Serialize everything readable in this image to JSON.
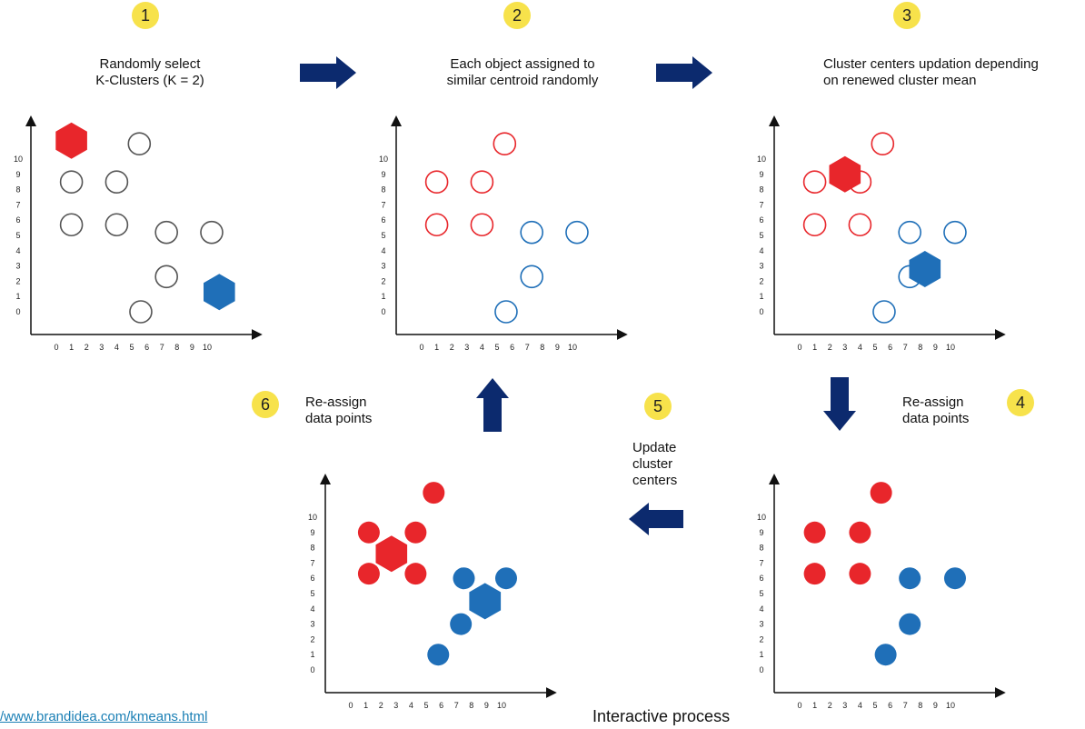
{
  "steps": [
    {
      "number": "1",
      "caption_line1": "Randomly select",
      "caption_line2": "K-Clusters (K = 2)"
    },
    {
      "number": "2",
      "caption_line1": "Each object assigned to",
      "caption_line2": "similar centroid randomly"
    },
    {
      "number": "3",
      "caption_line1": "Cluster centers updation depending",
      "caption_line2": "on renewed cluster mean"
    },
    {
      "number": "4",
      "caption_line1": "Re-assign",
      "caption_line2": "data points"
    },
    {
      "number": "5",
      "caption_line1": "Update",
      "caption_line2": "cluster",
      "caption_line3": "centers"
    },
    {
      "number": "6",
      "caption_line1": "Re-assign",
      "caption_line2": "data points"
    }
  ],
  "axis": {
    "x_ticks": [
      "0",
      "1",
      "2",
      "3",
      "4",
      "5",
      "6",
      "7",
      "8",
      "9",
      "10"
    ],
    "y_ticks": [
      "0",
      "1",
      "2",
      "3",
      "4",
      "5",
      "6",
      "7",
      "8",
      "9",
      "10"
    ]
  },
  "colors": {
    "red": "#e8262b",
    "blue": "#1f6fb8",
    "gray": "#555555",
    "arrow": "#0c2a6e",
    "badge": "#f7e24b",
    "link": "#1a7fb5"
  },
  "footer": {
    "link": "/www.brandidea.com/kmeans.html",
    "title": "Interactive process"
  },
  "chart_data": [
    {
      "type": "scatter",
      "step": 1,
      "points": [
        {
          "x": 1,
          "y": 5.7,
          "style": "gray-open"
        },
        {
          "x": 4,
          "y": 5.7,
          "style": "gray-open"
        },
        {
          "x": 1,
          "y": 8.5,
          "style": "gray-open"
        },
        {
          "x": 4,
          "y": 8.5,
          "style": "gray-open"
        },
        {
          "x": 5.5,
          "y": 11,
          "style": "gray-open"
        },
        {
          "x": 7.3,
          "y": 5.2,
          "style": "gray-open"
        },
        {
          "x": 10.3,
          "y": 5.2,
          "style": "gray-open"
        },
        {
          "x": 7.3,
          "y": 2.3,
          "style": "gray-open"
        },
        {
          "x": 5.6,
          "y": 0,
          "style": "gray-open"
        }
      ],
      "centroids": [
        {
          "x": 1,
          "y": 11.2,
          "color": "red"
        },
        {
          "x": 10.8,
          "y": 1.3,
          "color": "blue"
        }
      ]
    },
    {
      "type": "scatter",
      "step": 2,
      "points": [
        {
          "x": 1,
          "y": 5.7,
          "style": "red-open"
        },
        {
          "x": 4,
          "y": 5.7,
          "style": "red-open"
        },
        {
          "x": 1,
          "y": 8.5,
          "style": "red-open"
        },
        {
          "x": 4,
          "y": 8.5,
          "style": "red-open"
        },
        {
          "x": 5.5,
          "y": 11,
          "style": "red-open"
        },
        {
          "x": 5.6,
          "y": 0,
          "style": "blue-open"
        },
        {
          "x": 7.3,
          "y": 2.3,
          "style": "blue-open"
        },
        {
          "x": 7.3,
          "y": 5.2,
          "style": "blue-open"
        },
        {
          "x": 10.3,
          "y": 5.2,
          "style": "blue-open"
        }
      ],
      "centroids": []
    },
    {
      "type": "scatter",
      "step": 3,
      "points": [
        {
          "x": 1,
          "y": 5.7,
          "style": "red-open"
        },
        {
          "x": 4,
          "y": 5.7,
          "style": "red-open"
        },
        {
          "x": 1,
          "y": 8.5,
          "style": "red-open"
        },
        {
          "x": 4,
          "y": 8.5,
          "style": "red-open"
        },
        {
          "x": 5.5,
          "y": 11,
          "style": "red-open"
        },
        {
          "x": 5.6,
          "y": 0,
          "style": "blue-open"
        },
        {
          "x": 7.3,
          "y": 2.3,
          "style": "blue-open"
        },
        {
          "x": 7.3,
          "y": 5.2,
          "style": "blue-open"
        },
        {
          "x": 10.3,
          "y": 5.2,
          "style": "blue-open"
        }
      ],
      "centroids": [
        {
          "x": 3,
          "y": 9,
          "color": "red"
        },
        {
          "x": 8.3,
          "y": 2.8,
          "color": "blue"
        }
      ]
    },
    {
      "type": "scatter",
      "step": 4,
      "points": [
        {
          "x": 1,
          "y": 6.3,
          "style": "red-filled"
        },
        {
          "x": 4,
          "y": 6.3,
          "style": "red-filled"
        },
        {
          "x": 1,
          "y": 9,
          "style": "red-filled"
        },
        {
          "x": 4,
          "y": 9,
          "style": "red-filled"
        },
        {
          "x": 5.4,
          "y": 11.6,
          "style": "red-filled"
        },
        {
          "x": 7.3,
          "y": 6,
          "style": "blue-filled"
        },
        {
          "x": 10.3,
          "y": 6,
          "style": "blue-filled"
        },
        {
          "x": 7.3,
          "y": 3,
          "style": "blue-filled"
        },
        {
          "x": 5.7,
          "y": 1,
          "style": "blue-filled"
        }
      ],
      "centroids": []
    },
    {
      "type": "scatter",
      "step": 6,
      "points": [
        {
          "x": 1.2,
          "y": 6.3,
          "style": "red-filled"
        },
        {
          "x": 4.3,
          "y": 6.3,
          "style": "red-filled"
        },
        {
          "x": 1.2,
          "y": 9,
          "style": "red-filled"
        },
        {
          "x": 4.3,
          "y": 9,
          "style": "red-filled"
        },
        {
          "x": 5.5,
          "y": 11.6,
          "style": "red-filled"
        },
        {
          "x": 7.5,
          "y": 6,
          "style": "blue-filled"
        },
        {
          "x": 10.3,
          "y": 6,
          "style": "blue-filled"
        },
        {
          "x": 7.3,
          "y": 3,
          "style": "blue-filled"
        },
        {
          "x": 5.8,
          "y": 1,
          "style": "blue-filled"
        }
      ],
      "centroids": [
        {
          "x": 2.7,
          "y": 7.6,
          "color": "red"
        },
        {
          "x": 8.9,
          "y": 4.5,
          "color": "blue"
        }
      ]
    }
  ]
}
